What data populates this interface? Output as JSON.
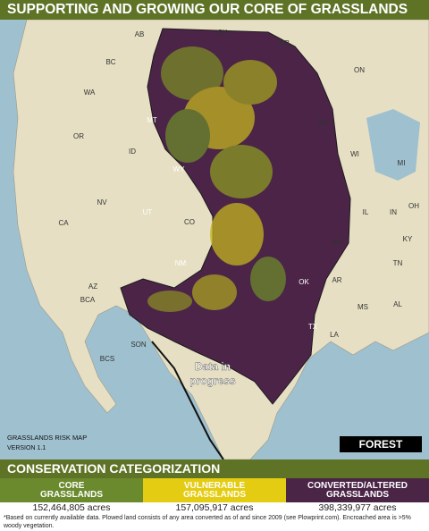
{
  "header": {
    "title": "SUPPORTING AND GROWING OUR CORE OF GRASSLANDS"
  },
  "map": {
    "labels": [
      "AB",
      "SK",
      "MB",
      "BC",
      "ON",
      "WA",
      "MT",
      "MN",
      "OR",
      "ID",
      "WY",
      "WI",
      "MI",
      "NV",
      "UT",
      "CO",
      "IL",
      "IN",
      "OH",
      "CA",
      "KY",
      "MO",
      "NM",
      "TN",
      "AZ",
      "OK",
      "AR",
      "BCA",
      "MS",
      "AL",
      "LA",
      "TX",
      "SON",
      "BCS"
    ],
    "progress_note": [
      "Data in",
      "progress"
    ],
    "map_name": "GRASSLANDS RISK MAP",
    "version": "VERSION 1.1",
    "forest_label": "FOREST"
  },
  "legend": {
    "heading": "CONSERVATION CATEGORIZATION",
    "categories": [
      {
        "name": [
          "CORE",
          "GRASSLANDS"
        ],
        "acres": "152,464,805 acres"
      },
      {
        "name": [
          "VULNERABLE",
          "GRASSLANDS"
        ],
        "acres": "157,095,917 acres"
      },
      {
        "name": [
          "CONVERTED/ALTERED",
          "GRASSLANDS"
        ],
        "acres": "398,339,977 acres"
      }
    ]
  },
  "footnote": "*Based on currently available data. Plowed land consists of any area converted as of and since 2009 (see Plowprint.com). Encroached area is >5% woody vegetation."
}
